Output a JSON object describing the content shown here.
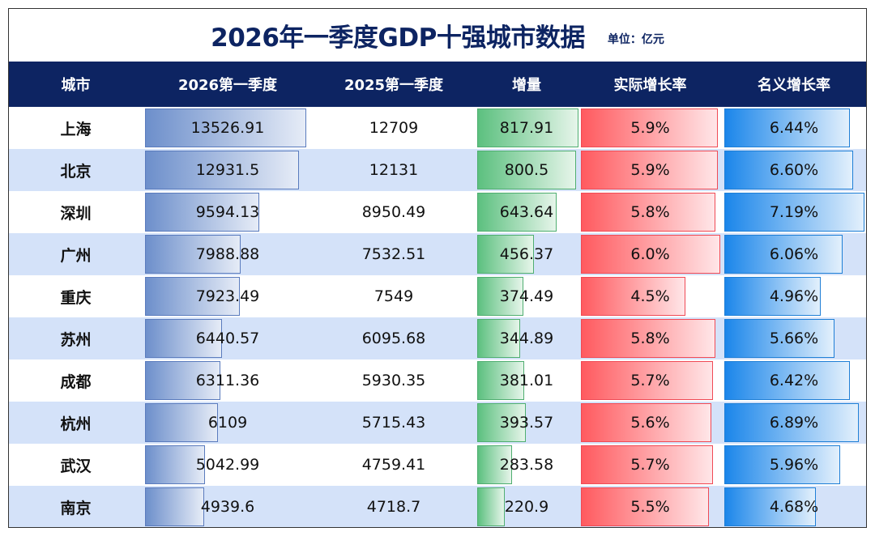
{
  "title": "2026年一季度GDP十强城市数据",
  "unit": "单位：亿元",
  "headers": [
    "城市",
    "2026第一季度",
    "2025第一季度",
    "增量",
    "实际增长率",
    "名义增长率"
  ],
  "colors": {
    "header_bg": "#0d2462",
    "alt_row": "#d4e2f9",
    "gdp_bar": "#6d8fcb",
    "increase_bar": "#5cc07f",
    "real_growth_bar": "#ff5a5f",
    "nominal_growth_bar": "#1b86ea"
  },
  "rows": [
    {
      "city": "上海",
      "q1_2026": "13526.91",
      "q1_2025": "12709",
      "increase": "817.91",
      "real_growth": "5.9%",
      "nominal_growth": "6.44%"
    },
    {
      "city": "北京",
      "q1_2026": "12931.5",
      "q1_2025": "12131",
      "increase": "800.5",
      "real_growth": "5.9%",
      "nominal_growth": "6.60%"
    },
    {
      "city": "深圳",
      "q1_2026": "9594.13",
      "q1_2025": "8950.49",
      "increase": "643.64",
      "real_growth": "5.8%",
      "nominal_growth": "7.19%"
    },
    {
      "city": "广州",
      "q1_2026": "7988.88",
      "q1_2025": "7532.51",
      "increase": "456.37",
      "real_growth": "6.0%",
      "nominal_growth": "6.06%"
    },
    {
      "city": "重庆",
      "q1_2026": "7923.49",
      "q1_2025": "7549",
      "increase": "374.49",
      "real_growth": "4.5%",
      "nominal_growth": "4.96%"
    },
    {
      "city": "苏州",
      "q1_2026": "6440.57",
      "q1_2025": "6095.68",
      "increase": "344.89",
      "real_growth": "5.8%",
      "nominal_growth": "5.66%"
    },
    {
      "city": "成都",
      "q1_2026": "6311.36",
      "q1_2025": "5930.35",
      "increase": "381.01",
      "real_growth": "5.7%",
      "nominal_growth": "6.42%"
    },
    {
      "city": "杭州",
      "q1_2026": "6109",
      "q1_2025": "5715.43",
      "increase": "393.57",
      "real_growth": "5.6%",
      "nominal_growth": "6.89%"
    },
    {
      "city": "武汉",
      "q1_2026": "5042.99",
      "q1_2025": "4759.41",
      "increase": "283.58",
      "real_growth": "5.7%",
      "nominal_growth": "5.96%"
    },
    {
      "city": "南京",
      "q1_2026": "4939.6",
      "q1_2025": "4718.7",
      "increase": "220.9",
      "real_growth": "5.5%",
      "nominal_growth": "4.68%"
    }
  ]
}
